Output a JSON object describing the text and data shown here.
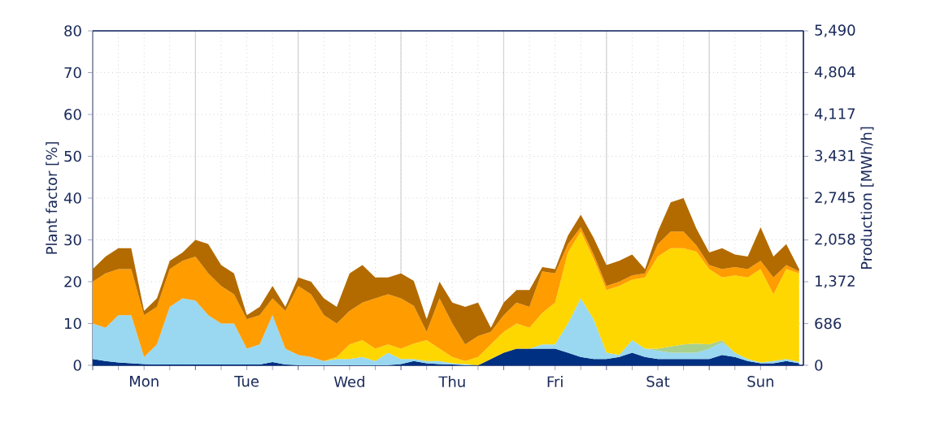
{
  "chart_data": {
    "type": "area",
    "stacked": true,
    "ylabel": "Plant factor [%]",
    "y2label": "Production [MWh/h]",
    "grid": true,
    "categories": [
      null,
      null,
      null,
      null,
      "Mon",
      null,
      null,
      null,
      null,
      null,
      null,
      null,
      "Tue",
      null,
      null,
      null,
      null,
      null,
      null,
      null,
      "Wed",
      null,
      null,
      null,
      null,
      null,
      null,
      null,
      "Thu",
      null,
      null,
      null,
      null,
      null,
      null,
      null,
      "Fri",
      null,
      null,
      null,
      null,
      null,
      null,
      null,
      "Sat",
      null,
      null,
      null,
      null,
      null,
      null,
      null,
      "Sun",
      null,
      null,
      null
    ],
    "ylim": [
      0,
      80
    ],
    "yticks": [
      0,
      10,
      20,
      30,
      40,
      50,
      60,
      70,
      80
    ],
    "y2lim": [
      0,
      5490
    ],
    "y2ticks": [
      0,
      686,
      {
        "value": 1372,
        "label": "1,372"
      },
      {
        "value": 2058,
        "label": "2,058"
      },
      {
        "value": 2745,
        "label": "2,745"
      },
      {
        "value": 3431,
        "label": "3,431"
      },
      {
        "value": 4117,
        "label": "4,117"
      },
      {
        "value": 4804,
        "label": "4,804"
      },
      {
        "value": 5490,
        "label": "5,490"
      }
    ],
    "series": [
      {
        "color": "#003082",
        "values": [
          1.5,
          1,
          0.7,
          0.5,
          0.3,
          0.2,
          0.2,
          0.2,
          0.2,
          0.2,
          0.2,
          0.2,
          0.2,
          0.2,
          0.8,
          0.2,
          0,
          0,
          0,
          0,
          0,
          0,
          0,
          0,
          0.3,
          1,
          0.5,
          0.3,
          0.2,
          0,
          0,
          1.5,
          3,
          4,
          4,
          4,
          4,
          3,
          2,
          1.5,
          1.5,
          2,
          3,
          2,
          1.5,
          1.5,
          1.5,
          1.5,
          1.5,
          2.5,
          2,
          1,
          0.5,
          0.5,
          1,
          0.5
        ]
      },
      {
        "color": "#99d8f0",
        "values": [
          8.5,
          8,
          11.3,
          11.5,
          1.7,
          4.8,
          13.8,
          15.8,
          15.3,
          11.8,
          9.8,
          9.8,
          3.8,
          4.8,
          11.2,
          3.8,
          2.5,
          2,
          1,
          1.5,
          1.5,
          2,
          1,
          3,
          1.2,
          0.5,
          0.5,
          0.7,
          0.3,
          0.3,
          0,
          0,
          0,
          0,
          0,
          1,
          1,
          7,
          14,
          9.5,
          1.5,
          0.5,
          3,
          2,
          2,
          1.5,
          1.5,
          1.5,
          2.5,
          3,
          1,
          0.5,
          0.2,
          0.5,
          0.5,
          0.3
        ]
      },
      {
        "color": "#a8d08d",
        "values": [
          null,
          null,
          null,
          null,
          null,
          null,
          null,
          null,
          null,
          null,
          null,
          null,
          null,
          null,
          null,
          null,
          null,
          null,
          null,
          null,
          null,
          null,
          null,
          null,
          null,
          null,
          null,
          null,
          null,
          null,
          null,
          null,
          null,
          null,
          null,
          null,
          null,
          null,
          null,
          null,
          null,
          null,
          null,
          0,
          0.5,
          1.5,
          2,
          2.2,
          1,
          0.5,
          0,
          null,
          null,
          null,
          null,
          null
        ]
      },
      {
        "color": "#ffd700",
        "values": [
          0,
          0,
          0,
          0,
          0,
          0,
          0,
          0,
          0,
          0,
          0,
          0,
          0,
          0,
          0,
          0,
          0,
          0,
          0,
          0.5,
          3.5,
          4,
          3,
          2,
          2.5,
          3.7,
          5,
          3,
          1.5,
          0.7,
          2,
          3.5,
          5,
          6,
          5,
          7.5,
          10,
          17,
          16,
          14.5,
          15,
          16.5,
          14.5,
          17,
          22,
          23.5,
          23,
          22,
          18,
          15,
          18.5,
          19.5,
          22.3,
          16,
          21.5,
          21.2
        ]
      },
      {
        "color": "#ff9c00",
        "values": [
          10,
          13,
          11,
          11,
          10,
          9,
          9,
          9,
          10.5,
          10,
          9,
          7,
          7,
          7,
          4,
          9,
          16.5,
          15,
          11,
          8,
          8,
          9,
          12,
          12,
          12,
          9,
          2,
          12,
          8,
          4,
          5,
          3,
          4,
          5,
          5,
          10,
          7,
          2,
          1,
          1,
          1,
          1,
          1,
          1,
          3,
          4,
          4,
          1.5,
          1,
          2,
          2,
          2,
          2,
          4,
          1,
          0.5
        ]
      },
      {
        "color": "#b36b00",
        "values": [
          3,
          4,
          5,
          5,
          1,
          2,
          2,
          2,
          4,
          7,
          5,
          5,
          1,
          2,
          3,
          1,
          2,
          3,
          4,
          4,
          9,
          9,
          5,
          4,
          6,
          6,
          3,
          4,
          5,
          9,
          8,
          1,
          3,
          3,
          4,
          1,
          1,
          2,
          3,
          4,
          5,
          5,
          5,
          1,
          3,
          7,
          8,
          4,
          3,
          5,
          3,
          3,
          8,
          5,
          5,
          0.5
        ]
      }
    ]
  }
}
